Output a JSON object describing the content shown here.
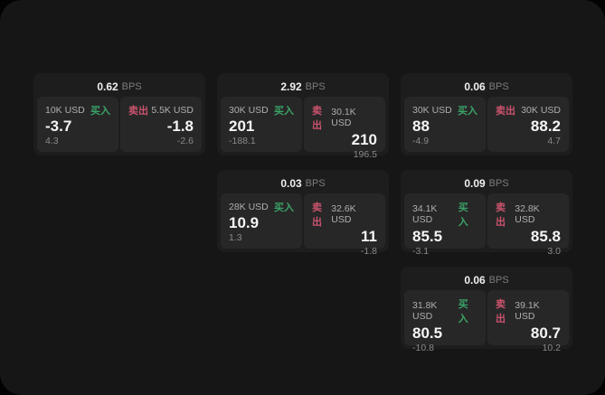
{
  "labels": {
    "bps_unit": "BPS",
    "buy": "买入",
    "sell": "卖出"
  },
  "colors": {
    "buy_green": "#3ba368",
    "sell_red": "#ca536d",
    "window_background": "#161616",
    "card_background": "#1d1d1d",
    "panel_background": "#272727",
    "outer_background": "#020202"
  },
  "cards": [
    {
      "bps": "0.62",
      "grid": {
        "col": 1,
        "row": 1
      },
      "buy": {
        "amount": "10K USD",
        "value": "-3.7",
        "sub": "4.3"
      },
      "sell": {
        "amount": "5.5K USD",
        "value": "-1.8",
        "sub": "-2.6"
      }
    },
    {
      "bps": "2.92",
      "grid": {
        "col": 2,
        "row": 1
      },
      "buy": {
        "amount": "30K USD",
        "value": "201",
        "sub": "-188.1"
      },
      "sell": {
        "amount": "30.1K USD",
        "value": "210",
        "sub": "196.5"
      }
    },
    {
      "bps": "0.06",
      "grid": {
        "col": 3,
        "row": 1
      },
      "buy": {
        "amount": "30K USD",
        "value": "88",
        "sub": "-4.9"
      },
      "sell": {
        "amount": "30K USD",
        "value": "88.2",
        "sub": "4.7"
      }
    },
    {
      "bps": "0.03",
      "grid": {
        "col": 2,
        "row": 2
      },
      "buy": {
        "amount": "28K USD",
        "value": "10.9",
        "sub": "1.3"
      },
      "sell": {
        "amount": "32.6K USD",
        "value": "11",
        "sub": "-1.8"
      }
    },
    {
      "bps": "0.09",
      "grid": {
        "col": 3,
        "row": 2
      },
      "buy": {
        "amount": "34.1K USD",
        "value": "85.5",
        "sub": "-3.1"
      },
      "sell": {
        "amount": "32.8K USD",
        "value": "85.8",
        "sub": "3.0"
      }
    },
    {
      "bps": "0.06",
      "grid": {
        "col": 3,
        "row": 3
      },
      "buy": {
        "amount": "31.8K USD",
        "value": "80.5",
        "sub": "-10.8"
      },
      "sell": {
        "amount": "39.1K USD",
        "value": "80.7",
        "sub": "10.2"
      }
    }
  ]
}
